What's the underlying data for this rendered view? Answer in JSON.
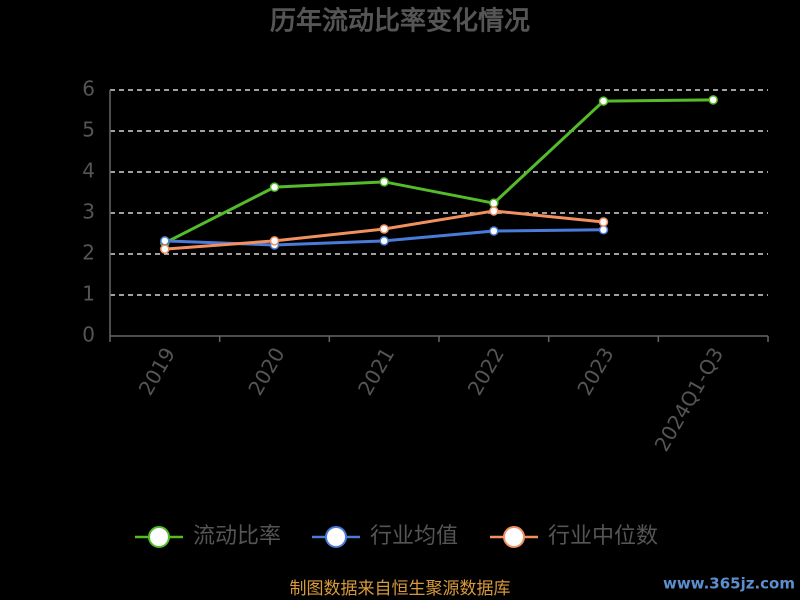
{
  "chart_data": {
    "type": "line",
    "title": "历年流动比率变化情况",
    "categories": [
      "2019",
      "2020",
      "2021",
      "2022",
      "2023",
      "2024Q1-Q3"
    ],
    "series": [
      {
        "name": "流动比率",
        "color": "#55bb2a",
        "values": [
          2.27,
          3.63,
          3.76,
          3.24,
          5.73,
          5.76
        ]
      },
      {
        "name": "行业均值",
        "color": "#4a7bd8",
        "values": [
          2.32,
          2.22,
          2.32,
          2.56,
          2.59,
          null
        ]
      },
      {
        "name": "行业中位数",
        "color": "#f39060",
        "values": [
          2.12,
          2.32,
          2.61,
          3.05,
          2.78,
          null
        ]
      }
    ],
    "ylim": [
      0,
      6
    ],
    "yticks": [
      0,
      1,
      2,
      3,
      4,
      5,
      6
    ],
    "grid": true,
    "legend": "bottom",
    "source": "制图数据来自恒生聚源数据库",
    "watermark": "www.365jz.com"
  }
}
